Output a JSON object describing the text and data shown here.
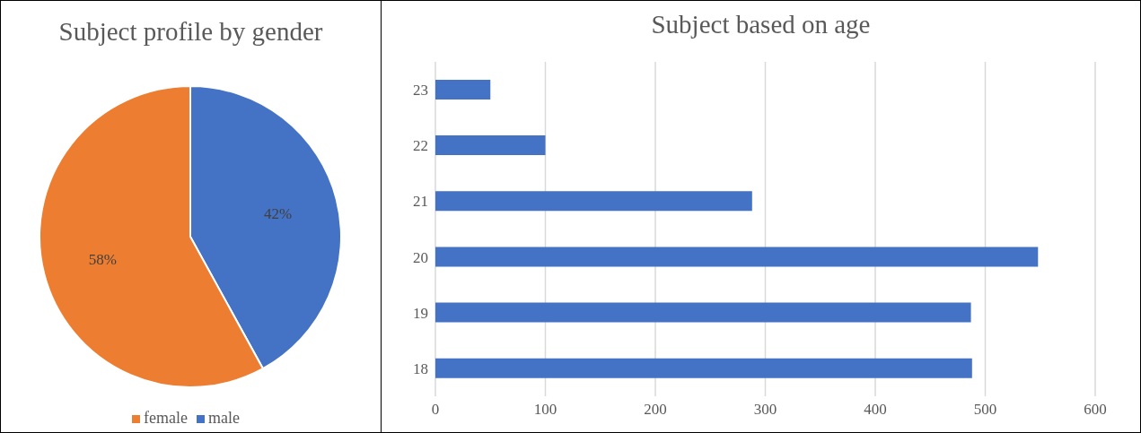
{
  "chart_data": [
    {
      "type": "pie",
      "title": "Subject profile by gender",
      "categories": [
        "male",
        "female"
      ],
      "values": [
        42,
        58
      ],
      "colors": [
        "#4472c4",
        "#ed7d31"
      ],
      "value_labels": [
        "42%",
        "58%"
      ],
      "legend": "bottom"
    },
    {
      "type": "bar",
      "title": "Subject based on age",
      "orientation": "horizontal",
      "categories": [
        "23",
        "22",
        "21",
        "20",
        "19",
        "18"
      ],
      "values": [
        50,
        100,
        288,
        548,
        487,
        488
      ],
      "color": "#4472c4",
      "xlim": [
        0,
        600
      ],
      "xticks": [
        0,
        100,
        200,
        300,
        400,
        500,
        600
      ],
      "grid": "x"
    }
  ]
}
